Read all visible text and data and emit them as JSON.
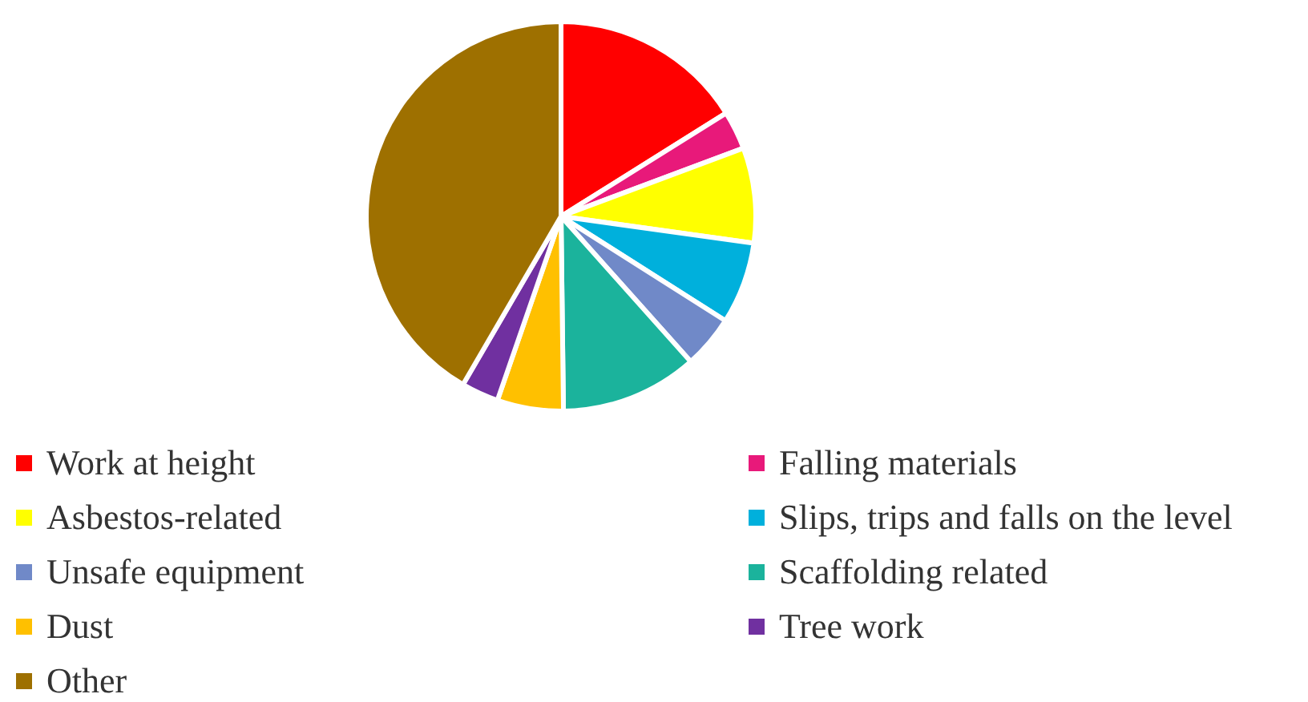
{
  "chart_data": {
    "type": "pie",
    "legend": "bottom",
    "categories": [
      "Work at height",
      "Falling materials",
      "Asbestos-related",
      "Slips, trips and falls on the level",
      "Unsafe equipment",
      "Scaffolding related",
      "Dust",
      "Tree work",
      "Other"
    ],
    "values": [
      16.1,
      3.2,
      7.9,
      6.8,
      4.4,
      11.4,
      5.5,
      3.1,
      41.6
    ],
    "colors": [
      "#ff0000",
      "#e8197a",
      "#ffff00",
      "#00b0dc",
      "#7089c8",
      "#1bb39c",
      "#ffc000",
      "#7030a0",
      "#9e7000"
    ]
  }
}
